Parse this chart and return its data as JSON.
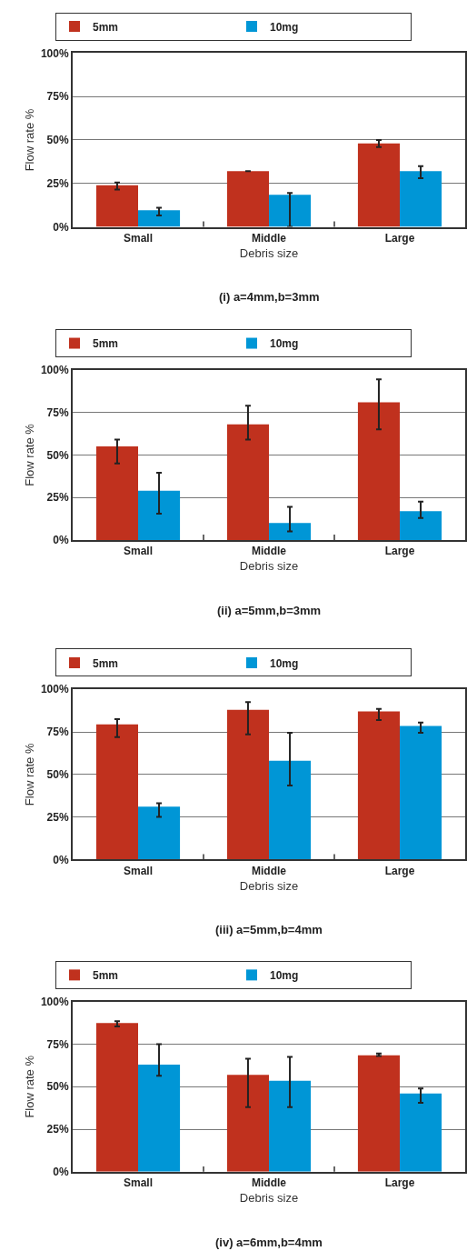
{
  "chart_data": [
    {
      "type": "bar",
      "title": "(i) a=4mm,b=3mm",
      "xlabel": "Debris size",
      "ylabel": "Flow rate %",
      "categories": [
        "Small",
        "Middle",
        "Large"
      ],
      "series": [
        {
          "name": "5mm",
          "color": "#c0311e",
          "values": [
            24,
            32,
            48
          ],
          "errors": [
            [
              21.5,
              25.5
            ],
            null,
            [
              46,
              50
            ]
          ]
        },
        {
          "name": "10mg",
          "color": "#0096d6",
          "values": [
            9.5,
            18.5,
            32
          ],
          "errors": [
            [
              6.5,
              11
            ],
            [
              0,
              19.5
            ],
            [
              28,
              35
            ]
          ]
        }
      ],
      "ylim": [
        0,
        100
      ],
      "yticks": [
        {
          "value": 0,
          "label": "0%"
        },
        {
          "value": 25,
          "label": "25%"
        },
        {
          "value": 50,
          "label": "50%"
        },
        {
          "value": 75,
          "label": "75%"
        },
        {
          "value": 100,
          "label": "100%"
        }
      ],
      "grid": "y",
      "legend": "top"
    },
    {
      "type": "bar",
      "title": "(ii) a=5mm,b=3mm",
      "xlabel": "Debris size",
      "ylabel": "Flow rate %",
      "categories": [
        "Small",
        "Middle",
        "Large"
      ],
      "series": [
        {
          "name": "5mm",
          "color": "#c0311e",
          "values": [
            55,
            68,
            81
          ],
          "errors": [
            [
              45,
              59
            ],
            [
              59,
              79
            ],
            [
              65,
              94.5
            ]
          ]
        },
        {
          "name": "10mg",
          "color": "#0096d6",
          "values": [
            29,
            10,
            17
          ],
          "errors": [
            [
              15.5,
              39.5
            ],
            [
              5,
              19.5
            ],
            [
              13,
              22.5
            ]
          ]
        }
      ],
      "ylim": [
        0,
        100
      ],
      "yticks": [
        {
          "value": 0,
          "label": "0%"
        },
        {
          "value": 25,
          "label": "25%"
        },
        {
          "value": 50,
          "label": "50%"
        },
        {
          "value": 75,
          "label": "75%"
        },
        {
          "value": 100,
          "label": "100%"
        }
      ],
      "grid": "y",
      "legend": "top"
    },
    {
      "type": "bar",
      "title": "(iii) a=5mm,b=4mm",
      "xlabel": "Debris size",
      "ylabel": "Flow rate %",
      "categories": [
        "Small",
        "Middle",
        "Large"
      ],
      "series": [
        {
          "name": "5mm",
          "color": "#c0311e",
          "values": [
            79.5,
            88,
            87
          ],
          "errors": [
            [
              72,
              82.5
            ],
            [
              73.5,
              92.5
            ],
            [
              82,
              88.5
            ]
          ]
        },
        {
          "name": "10mg",
          "color": "#0096d6",
          "values": [
            31,
            58,
            78.5
          ],
          "errors": [
            [
              25,
              33
            ],
            [
              43.5,
              74.5
            ],
            [
              74.5,
              80.5
            ]
          ]
        }
      ],
      "ylim": [
        0,
        100
      ],
      "yticks": [
        {
          "value": 0,
          "label": "0%"
        },
        {
          "value": 25,
          "label": "25%"
        },
        {
          "value": 50,
          "label": "50%"
        },
        {
          "value": 75,
          "label": "75%"
        },
        {
          "value": 100,
          "label": "100%"
        }
      ],
      "grid": "y",
      "legend": "top"
    },
    {
      "type": "bar",
      "title": "(iv) a=6mm,b=4mm",
      "xlabel": "Debris size",
      "ylabel": "Flow rate %",
      "categories": [
        "Small",
        "Middle",
        "Large"
      ],
      "series": [
        {
          "name": "5mm",
          "color": "#c0311e",
          "values": [
            87.5,
            57,
            68.5
          ],
          "errors": [
            [
              85.5,
              88.5
            ],
            [
              38,
              66.5
            ],
            [
              68,
              69.5
            ]
          ]
        },
        {
          "name": "10mg",
          "color": "#0096d6",
          "values": [
            63,
            53.5,
            46
          ],
          "errors": [
            [
              56.5,
              75
            ],
            [
              38,
              67.5
            ],
            [
              40.5,
              49
            ]
          ]
        }
      ],
      "ylim": [
        0,
        100
      ],
      "yticks": [
        {
          "value": 0,
          "label": "0%"
        },
        {
          "value": 25,
          "label": "25%"
        },
        {
          "value": 50,
          "label": "50%"
        },
        {
          "value": 75,
          "label": "75%"
        },
        {
          "value": 100,
          "label": "100%"
        }
      ],
      "grid": "y",
      "legend": "top"
    }
  ]
}
